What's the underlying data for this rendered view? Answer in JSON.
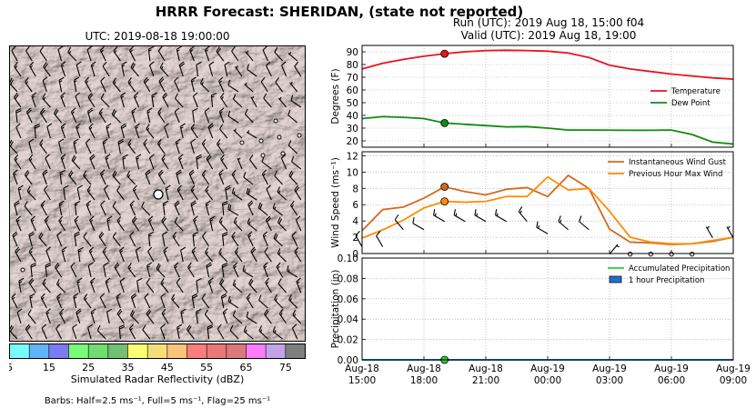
{
  "title": "HRRR Forecast: SHERIDAN, (state not reported)",
  "map": {
    "title": "UTC: 2019-08-18 19:00:00",
    "colorbar": {
      "label": "Simulated Radar Reflectivity (dBZ)",
      "ticks": [
        "5",
        "15",
        "25",
        "35",
        "45",
        "55",
        "65",
        "75"
      ],
      "colors": [
        "#77fcfc",
        "#62b4f8",
        "#7b7bf2",
        "#78fc78",
        "#6fdd6f",
        "#72c072",
        "#fdfd72",
        "#f2df79",
        "#fbc279",
        "#f97d7d",
        "#ea7878",
        "#dd7878",
        "#fb7cfb",
        "#c2a4e6",
        "#7e7e7e"
      ]
    },
    "barbs_note": "Barbs: Half=2.5 ms⁻¹, Full=5 ms⁻¹, Flag=25 ms⁻¹"
  },
  "run_title": [
    "Run (UTC): 2019 Aug 18, 15:00 f04",
    "Valid (UTC): 2019 Aug 18, 19:00"
  ],
  "x_ticks": [
    [
      "Aug-18",
      "15:00"
    ],
    [
      "Aug-18",
      "18:00"
    ],
    [
      "Aug-18",
      "21:00"
    ],
    [
      "Aug-19",
      "00:00"
    ],
    [
      "Aug-19",
      "03:00"
    ],
    [
      "Aug-19",
      "06:00"
    ],
    [
      "Aug-19",
      "09:00"
    ]
  ],
  "chart_data": [
    {
      "type": "line",
      "ylabel": "Degrees (F)",
      "ylim": [
        15,
        95
      ],
      "yticks": [
        20,
        30,
        40,
        50,
        60,
        70,
        80,
        90
      ],
      "grid": true,
      "legend": "right",
      "x_hours": [
        0,
        1,
        2,
        3,
        4,
        5,
        6,
        7,
        8,
        9,
        10,
        11,
        12,
        13,
        14,
        15,
        16,
        17,
        18
      ],
      "series": [
        {
          "name": "Temperature",
          "color": "#e8141c",
          "values": [
            76.5,
            81,
            84,
            86.5,
            88.5,
            90,
            91,
            91.2,
            91,
            90.5,
            89,
            85.5,
            79.5,
            76.5,
            74.5,
            72.5,
            71,
            69.5,
            68.5
          ]
        },
        {
          "name": "Dew Point",
          "color": "#108a10",
          "values": [
            37.5,
            39,
            38.5,
            37.5,
            34,
            33,
            32,
            31,
            31.2,
            30,
            28.5,
            28.5,
            28.4,
            28.3,
            28.3,
            28.5,
            25,
            19,
            17.5
          ]
        }
      ],
      "marker_hour": 4
    },
    {
      "type": "line",
      "ylabel": "Wind Speed (ms⁻¹)",
      "ylim": [
        0,
        12.5
      ],
      "yticks": [
        0,
        2,
        4,
        6,
        8,
        10,
        12
      ],
      "grid": true,
      "legend": "top-right",
      "x_hours": [
        0,
        1,
        2,
        3,
        4,
        5,
        6,
        7,
        8,
        9,
        10,
        11,
        12,
        13,
        14,
        15,
        16,
        17,
        18
      ],
      "series": [
        {
          "name": "Instantaneous Wind Gust",
          "color": "#d2691e",
          "values": [
            2.8,
            5.4,
            5.7,
            6.8,
            8.2,
            7.6,
            7.2,
            7.9,
            8.1,
            7.0,
            9.6,
            8.0,
            3.0,
            1.4,
            1.3,
            1.1,
            1.2,
            1.5,
            2.0
          ]
        },
        {
          "name": "Previous Hour Max Wind",
          "color": "#ff8c00",
          "values": [
            1.9,
            2.9,
            4.1,
            5.6,
            6.4,
            6.3,
            6.4,
            7.0,
            7.0,
            9.4,
            7.8,
            8.0,
            5.2,
            2.0,
            1.4,
            1.2,
            1.2,
            1.6,
            2.0
          ]
        }
      ],
      "marker_hour": 4,
      "barbs": [
        {
          "hour": 0,
          "y": 1.5,
          "dir": 330,
          "speed": 4
        },
        {
          "hour": 1,
          "y": 1.5,
          "dir": 330,
          "speed": 5
        },
        {
          "hour": 2,
          "y": 3.6,
          "dir": 320,
          "speed": 5
        },
        {
          "hour": 3,
          "y": 3.6,
          "dir": 300,
          "speed": 5
        },
        {
          "hour": 4,
          "y": 4.6,
          "dir": 300,
          "speed": 7.5
        },
        {
          "hour": 5,
          "y": 4.6,
          "dir": 300,
          "speed": 7.5
        },
        {
          "hour": 6,
          "y": 4.6,
          "dir": 300,
          "speed": 7.5
        },
        {
          "hour": 7,
          "y": 4.6,
          "dir": 300,
          "speed": 7.5
        },
        {
          "hour": 8,
          "y": 4.6,
          "dir": 320,
          "speed": 7.5
        },
        {
          "hour": 9,
          "y": 3.1,
          "dir": 300,
          "speed": 7.5
        },
        {
          "hour": 10,
          "y": 3.6,
          "dir": 310,
          "speed": 7.5
        },
        {
          "hour": 11,
          "y": 3.6,
          "dir": 310,
          "speed": 5
        },
        {
          "hour": 12,
          "y": 0.6,
          "dir": 40,
          "speed": 2.5
        },
        {
          "hour": 13,
          "y": 0.6,
          "dir": 0,
          "speed": 0
        },
        {
          "hour": 14,
          "y": 0.6,
          "dir": 0,
          "speed": 0
        },
        {
          "hour": 15,
          "y": 0.6,
          "dir": 0,
          "speed": 0
        },
        {
          "hour": 16,
          "y": 0.6,
          "dir": 0,
          "speed": 0
        },
        {
          "hour": 17,
          "y": 2.6,
          "dir": 330,
          "speed": 2.5
        },
        {
          "hour": 18,
          "y": 2.6,
          "dir": 330,
          "speed": 2.5
        }
      ]
    },
    {
      "type": "line",
      "ylabel": "Precipitation (in)",
      "ylim": [
        0,
        0.1
      ],
      "yticks": [
        "0.00",
        "0.02",
        "0.04",
        "0.06",
        "0.08",
        "0.10"
      ],
      "grid": true,
      "legend": "top-right",
      "x_hours": [
        0,
        1,
        2,
        3,
        4,
        5,
        6,
        7,
        8,
        9,
        10,
        11,
        12,
        13,
        14,
        15,
        16,
        17,
        18
      ],
      "series": [
        {
          "name": "Accumulated Precipitation",
          "color": "#33cc33",
          "values": [
            0,
            0,
            0,
            0,
            0,
            0,
            0,
            0,
            0,
            0,
            0,
            0,
            0,
            0,
            0,
            0,
            0,
            0,
            0
          ]
        },
        {
          "name": "1 hour Precipitation",
          "color": "#1f6fd1",
          "values": [
            0,
            0,
            0,
            0,
            0,
            0,
            0,
            0,
            0,
            0,
            0,
            0,
            0,
            0,
            0,
            0,
            0,
            0,
            0
          ]
        }
      ],
      "marker_hour": 4
    }
  ]
}
